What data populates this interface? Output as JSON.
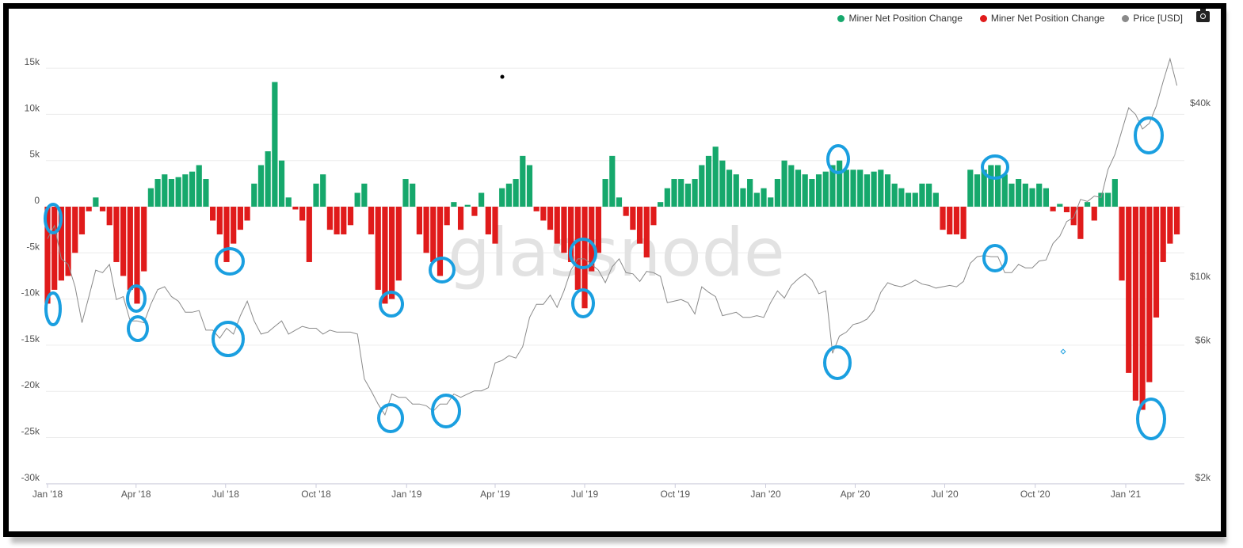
{
  "legend": {
    "items": [
      {
        "label": "Miner Net Position Change",
        "color": "#16a86c"
      },
      {
        "label": "Miner Net Position Change",
        "color": "#e01b1b"
      },
      {
        "label": "Price [USD]",
        "color": "#8a8a8a"
      }
    ],
    "camera_icon": "camera-icon"
  },
  "watermark": "glassnode",
  "chart_data": {
    "type": "bar+line",
    "left_axis": {
      "ticks": [
        "15k",
        "10k",
        "5k",
        "0",
        "-5k",
        "-10k",
        "-15k",
        "-20k",
        "-25k",
        "-30k"
      ],
      "tick_values": [
        15,
        10,
        5,
        0,
        -5,
        -10,
        -15,
        -20,
        -25,
        -30
      ],
      "range": [
        -30,
        15
      ]
    },
    "right_axis": {
      "scale": "log",
      "ticks": [
        "$40k",
        "$10k",
        "$6k",
        "$2k"
      ],
      "tick_values": [
        40,
        10,
        6,
        2
      ],
      "range": [
        2,
        60
      ]
    },
    "x_axis": {
      "ticks": [
        "Jan '18",
        "Apr '18",
        "Jul '18",
        "Oct '18",
        "Jan '19",
        "Apr '19",
        "Jul '19",
        "Oct '19",
        "Jan '20",
        "Apr '20",
        "Jul '20",
        "Oct '20",
        "Jan '21"
      ],
      "tick_dates": [
        "2018-01-01",
        "2018-04-01",
        "2018-07-01",
        "2018-10-01",
        "2019-01-01",
        "2019-04-01",
        "2019-07-01",
        "2019-10-01",
        "2020-01-01",
        "2020-04-01",
        "2020-07-01",
        "2020-10-01",
        "2021-01-01"
      ]
    },
    "grid": true,
    "legend_position": "top-right",
    "positive_color": "#16a86c",
    "negative_color": "#e01b1b",
    "price_color": "#8a8a8a",
    "dates": [
      "2018-01-01",
      "2018-01-08",
      "2018-01-15",
      "2018-01-22",
      "2018-01-29",
      "2018-02-05",
      "2018-02-12",
      "2018-02-19",
      "2018-02-26",
      "2018-03-05",
      "2018-03-12",
      "2018-03-19",
      "2018-03-26",
      "2018-04-02",
      "2018-04-09",
      "2018-04-16",
      "2018-04-23",
      "2018-04-30",
      "2018-05-07",
      "2018-05-14",
      "2018-05-21",
      "2018-05-28",
      "2018-06-04",
      "2018-06-11",
      "2018-06-18",
      "2018-06-25",
      "2018-07-02",
      "2018-07-09",
      "2018-07-16",
      "2018-07-23",
      "2018-07-30",
      "2018-08-06",
      "2018-08-13",
      "2018-08-20",
      "2018-08-27",
      "2018-09-03",
      "2018-09-10",
      "2018-09-17",
      "2018-09-24",
      "2018-10-01",
      "2018-10-08",
      "2018-10-15",
      "2018-10-22",
      "2018-10-29",
      "2018-11-05",
      "2018-11-12",
      "2018-11-19",
      "2018-11-26",
      "2018-12-03",
      "2018-12-10",
      "2018-12-17",
      "2018-12-24",
      "2018-12-31",
      "2019-01-07",
      "2019-01-14",
      "2019-01-21",
      "2019-01-28",
      "2019-02-04",
      "2019-02-11",
      "2019-02-18",
      "2019-02-25",
      "2019-03-04",
      "2019-03-11",
      "2019-03-18",
      "2019-03-25",
      "2019-04-01",
      "2019-04-08",
      "2019-04-15",
      "2019-04-22",
      "2019-04-29",
      "2019-05-06",
      "2019-05-13",
      "2019-05-20",
      "2019-05-27",
      "2019-06-03",
      "2019-06-10",
      "2019-06-17",
      "2019-06-24",
      "2019-07-01",
      "2019-07-08",
      "2019-07-15",
      "2019-07-22",
      "2019-07-29",
      "2019-08-05",
      "2019-08-12",
      "2019-08-19",
      "2019-08-26",
      "2019-09-02",
      "2019-09-09",
      "2019-09-16",
      "2019-09-23",
      "2019-09-30",
      "2019-10-07",
      "2019-10-14",
      "2019-10-21",
      "2019-10-28",
      "2019-11-04",
      "2019-11-11",
      "2019-11-18",
      "2019-11-25",
      "2019-12-02",
      "2019-12-09",
      "2019-12-16",
      "2019-12-23",
      "2019-12-30",
      "2020-01-06",
      "2020-01-13",
      "2020-01-20",
      "2020-01-27",
      "2020-02-03",
      "2020-02-10",
      "2020-02-17",
      "2020-02-24",
      "2020-03-02",
      "2020-03-09",
      "2020-03-16",
      "2020-03-23",
      "2020-03-30",
      "2020-04-06",
      "2020-04-13",
      "2020-04-20",
      "2020-04-27",
      "2020-05-04",
      "2020-05-11",
      "2020-05-18",
      "2020-05-25",
      "2020-06-01",
      "2020-06-08",
      "2020-06-15",
      "2020-06-22",
      "2020-06-29",
      "2020-07-06",
      "2020-07-13",
      "2020-07-20",
      "2020-07-27",
      "2020-08-03",
      "2020-08-10",
      "2020-08-17",
      "2020-08-24",
      "2020-08-31",
      "2020-09-07",
      "2020-09-14",
      "2020-09-21",
      "2020-09-28",
      "2020-10-05",
      "2020-10-12",
      "2020-10-19",
      "2020-10-26",
      "2020-11-02",
      "2020-11-09",
      "2020-11-16",
      "2020-11-23",
      "2020-11-30",
      "2020-12-07",
      "2020-12-14",
      "2020-12-21",
      "2020-12-28",
      "2021-01-04",
      "2021-01-11",
      "2021-01-18",
      "2021-01-25",
      "2021-02-01",
      "2021-02-08",
      "2021-02-15",
      "2021-02-22"
    ],
    "series": [
      {
        "name": "Miner Net Position Change",
        "unit": "k",
        "values": [
          -10.5,
          -9,
          -8,
          -7.5,
          -5,
          -3,
          -0.5,
          1,
          -0.5,
          -2,
          -6,
          -7.5,
          -9,
          -10.5,
          -7,
          2,
          3,
          3.5,
          3,
          3.2,
          3.5,
          3.8,
          4.5,
          3,
          -1.5,
          -3,
          -6,
          -4,
          -2.5,
          -1.5,
          2.5,
          4.5,
          6,
          13.5,
          5,
          1,
          -0.3,
          -1.5,
          -6,
          2.5,
          3.5,
          -2.5,
          -3,
          -3,
          -2,
          1.5,
          2.5,
          -3,
          -9,
          -10.5,
          -10,
          -8,
          3,
          2.5,
          -3,
          -5,
          -6,
          -7.5,
          -2,
          0.5,
          -2.5,
          0.2,
          -1,
          1.5,
          -3,
          -4,
          2,
          2.5,
          3,
          5.5,
          4.5,
          -0.5,
          -1.5,
          -2.5,
          -4,
          -5,
          -6,
          -9,
          -11,
          -7,
          -5,
          3,
          5.5,
          1,
          -1,
          -2.5,
          -4,
          -5.5,
          -2,
          0.5,
          2,
          3,
          3,
          2.5,
          3,
          4.5,
          5.5,
          6.5,
          5,
          4,
          3.5,
          2,
          3,
          1.5,
          2,
          1,
          3,
          5,
          4.5,
          4,
          3.5,
          3,
          3.5,
          3.8,
          4.5,
          5,
          4,
          4,
          4,
          3.5,
          3.8,
          4,
          3.5,
          2.5,
          2,
          1.5,
          1.5,
          2.5,
          2.5,
          1.5,
          -2.5,
          -3,
          -3,
          -3.5,
          4,
          3.5,
          4,
          4.5,
          4.5,
          3.5,
          2.5,
          3,
          2.5,
          2,
          2.5,
          2,
          -0.5,
          0.3,
          -0.6,
          -2,
          -3.5,
          0.5,
          -1.5,
          1.5,
          1.5,
          3,
          -8,
          -18,
          -21,
          -22,
          -19,
          -12,
          -6,
          -4,
          -3
        ]
      },
      {
        "name": "Price [USD]",
        "unit": "k USD",
        "values": [
          13.5,
          15,
          11.5,
          11,
          9.2,
          6.9,
          8.5,
          10.5,
          10.3,
          11,
          8.3,
          8.5,
          7,
          7,
          6.9,
          8,
          9,
          9.2,
          8.5,
          8.2,
          7.5,
          7.5,
          7.6,
          6.5,
          6.5,
          6.1,
          6.6,
          6.3,
          7.3,
          8.2,
          7,
          6.3,
          6.4,
          6.7,
          7,
          6.3,
          6.5,
          6.7,
          6.6,
          6.6,
          6.3,
          6.5,
          6.4,
          6.4,
          6.4,
          6.3,
          4.4,
          4,
          3.6,
          3.3,
          3.9,
          3.8,
          3.8,
          3.6,
          3.6,
          3.55,
          3.4,
          3.6,
          3.6,
          3.9,
          3.8,
          3.9,
          4,
          4,
          4.1,
          5,
          5.1,
          5.3,
          5.2,
          5.7,
          7.2,
          8,
          8,
          8.6,
          7.8,
          8.9,
          10.5,
          11.5,
          11.5,
          11,
          10.5,
          9.5,
          10.8,
          11.5,
          10.3,
          10.2,
          9.6,
          10.4,
          10.3,
          10,
          8.1,
          8.2,
          8.3,
          8.1,
          7.4,
          9.2,
          8.8,
          8.5,
          7.3,
          7.4,
          7.5,
          7.2,
          7.2,
          7.3,
          7.2,
          8.1,
          8.9,
          8.4,
          9.3,
          9.8,
          10.2,
          9.7,
          8.7,
          8.9,
          5.4,
          6.2,
          6.4,
          6.8,
          6.9,
          7.1,
          7.6,
          8.8,
          9.5,
          9.3,
          9.2,
          9.4,
          9.7,
          9.4,
          9.3,
          9.1,
          9.2,
          9.3,
          9.2,
          9.6,
          11.1,
          11.7,
          11.8,
          11.7,
          11.7,
          10.3,
          10.3,
          11,
          10.7,
          10.7,
          11.3,
          11.4,
          13,
          13.8,
          15.5,
          16,
          18.5,
          18.2,
          19,
          18.8,
          23.5,
          26.5,
          32,
          38.5,
          36.5,
          32.5,
          34,
          39,
          47.5,
          57,
          46
        ]
      }
    ]
  }
}
